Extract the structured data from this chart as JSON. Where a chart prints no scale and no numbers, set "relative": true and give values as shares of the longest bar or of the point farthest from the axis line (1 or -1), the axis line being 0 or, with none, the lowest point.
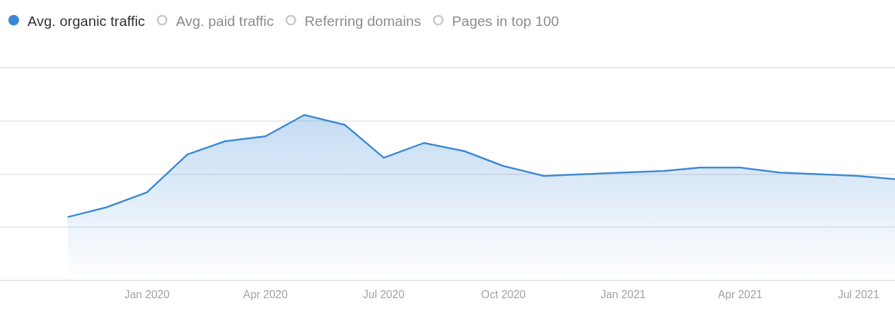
{
  "chart_data": {
    "type": "area",
    "relative": true,
    "x": [
      "2019-11-01",
      "2019-12-01",
      "2020-01-01",
      "2020-02-01",
      "2020-03-01",
      "2020-04-01",
      "2020-05-01",
      "2020-06-01",
      "2020-07-01",
      "2020-08-01",
      "2020-09-01",
      "2020-10-01",
      "2020-11-01",
      "2020-12-01",
      "2021-01-01",
      "2021-02-01",
      "2021-03-01",
      "2021-04-01",
      "2021-05-01",
      "2021-06-01",
      "2021-07-01",
      "2021-07-29"
    ],
    "xlim": [
      "2019-09-10",
      "2021-07-29"
    ],
    "xticks": [
      {
        "value": "2020-01-01",
        "label": "Jan 2020"
      },
      {
        "value": "2020-04-01",
        "label": "Apr 2020"
      },
      {
        "value": "2020-07-01",
        "label": "Jul 2020"
      },
      {
        "value": "2020-10-01",
        "label": "Oct 2020"
      },
      {
        "value": "2021-01-01",
        "label": "Jan 2021"
      },
      {
        "value": "2021-04-01",
        "label": "Apr 2021"
      },
      {
        "value": "2021-07-01",
        "label": "Jul 2021"
      }
    ],
    "series": [
      {
        "name": "Avg. organic traffic",
        "color": "#3a88d6",
        "values": [
          0.38,
          0.44,
          0.53,
          0.76,
          0.84,
          0.87,
          1,
          0.94,
          0.74,
          0.83,
          0.78,
          0.69,
          0.63,
          0.64,
          0.65,
          0.66,
          0.68,
          0.68,
          0.65,
          0.64,
          0.63,
          0.61
        ]
      },
      {
        "name": "Avg. paid traffic",
        "color": "#c8c8c8",
        "values": [
          null,
          null,
          null,
          null,
          null,
          null,
          null,
          null,
          null,
          null,
          null,
          null,
          null,
          null,
          null,
          null,
          null,
          null,
          null,
          null,
          null,
          null
        ]
      },
      {
        "name": "Referring domains",
        "color": "#c8c8c8",
        "values": [
          null,
          null,
          null,
          null,
          null,
          null,
          null,
          null,
          null,
          null,
          null,
          null,
          null,
          null,
          null,
          null,
          null,
          null,
          null,
          null,
          null,
          null
        ]
      },
      {
        "name": "Pages in top 100",
        "color": "#c8c8c8",
        "values": [
          null,
          null,
          null,
          null,
          null,
          null,
          null,
          null,
          null,
          null,
          null,
          null,
          null,
          null,
          null,
          null,
          null,
          null,
          null,
          null,
          null,
          null
        ]
      }
    ],
    "grid": "y",
    "legend": "top left"
  }
}
